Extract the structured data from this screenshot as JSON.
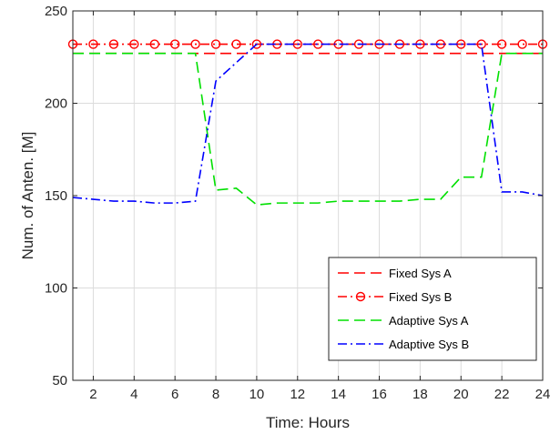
{
  "chart_data": {
    "type": "line",
    "title": "",
    "xlabel": "Time: Hours",
    "ylabel": "Num. of Anten. [M]",
    "xlim": [
      1,
      24
    ],
    "ylim": [
      50,
      250
    ],
    "xticks": [
      2,
      4,
      6,
      8,
      10,
      12,
      14,
      16,
      18,
      20,
      22,
      24
    ],
    "yticks": [
      50,
      100,
      150,
      200,
      250
    ],
    "grid": true,
    "legend_position": "bottom-right",
    "series": [
      {
        "name": "Fixed Sys A",
        "color": "#ff0000",
        "line_style": "dashed",
        "marker": "none",
        "x": [
          1,
          24
        ],
        "y": [
          227,
          227
        ]
      },
      {
        "name": "Fixed Sys B",
        "color": "#ff0000",
        "line_style": "dash-dot",
        "marker": "circle",
        "x": [
          1,
          2,
          3,
          4,
          5,
          6,
          7,
          8,
          9,
          10,
          11,
          12,
          13,
          14,
          15,
          16,
          17,
          18,
          19,
          20,
          21,
          22,
          23,
          24
        ],
        "y": [
          232,
          232,
          232,
          232,
          232,
          232,
          232,
          232,
          232,
          232,
          232,
          232,
          232,
          232,
          232,
          232,
          232,
          232,
          232,
          232,
          232,
          232,
          232,
          232
        ]
      },
      {
        "name": "Adaptive Sys A",
        "color": "#00e000",
        "line_style": "dashed",
        "marker": "none",
        "x": [
          1,
          2,
          3,
          4,
          5,
          6,
          7,
          8,
          9,
          10,
          11,
          12,
          13,
          14,
          15,
          16,
          17,
          18,
          19,
          20,
          21,
          22,
          23,
          24
        ],
        "y": [
          227,
          227,
          227,
          227,
          227,
          227,
          227,
          153,
          154,
          145,
          146,
          146,
          146,
          147,
          147,
          147,
          147,
          148,
          148,
          160,
          160,
          227,
          227,
          227
        ]
      },
      {
        "name": "Adaptive Sys B",
        "color": "#0000ff",
        "line_style": "dash-dot",
        "marker": "none",
        "x": [
          1,
          2,
          3,
          4,
          5,
          6,
          7,
          8,
          9,
          10,
          11,
          12,
          13,
          14,
          15,
          16,
          17,
          18,
          19,
          20,
          21,
          22,
          23,
          24
        ],
        "y": [
          149,
          148,
          147,
          147,
          146,
          146,
          147,
          212,
          222,
          232,
          232,
          232,
          232,
          232,
          232,
          232,
          232,
          232,
          232,
          232,
          232,
          152,
          152,
          150
        ]
      }
    ]
  }
}
